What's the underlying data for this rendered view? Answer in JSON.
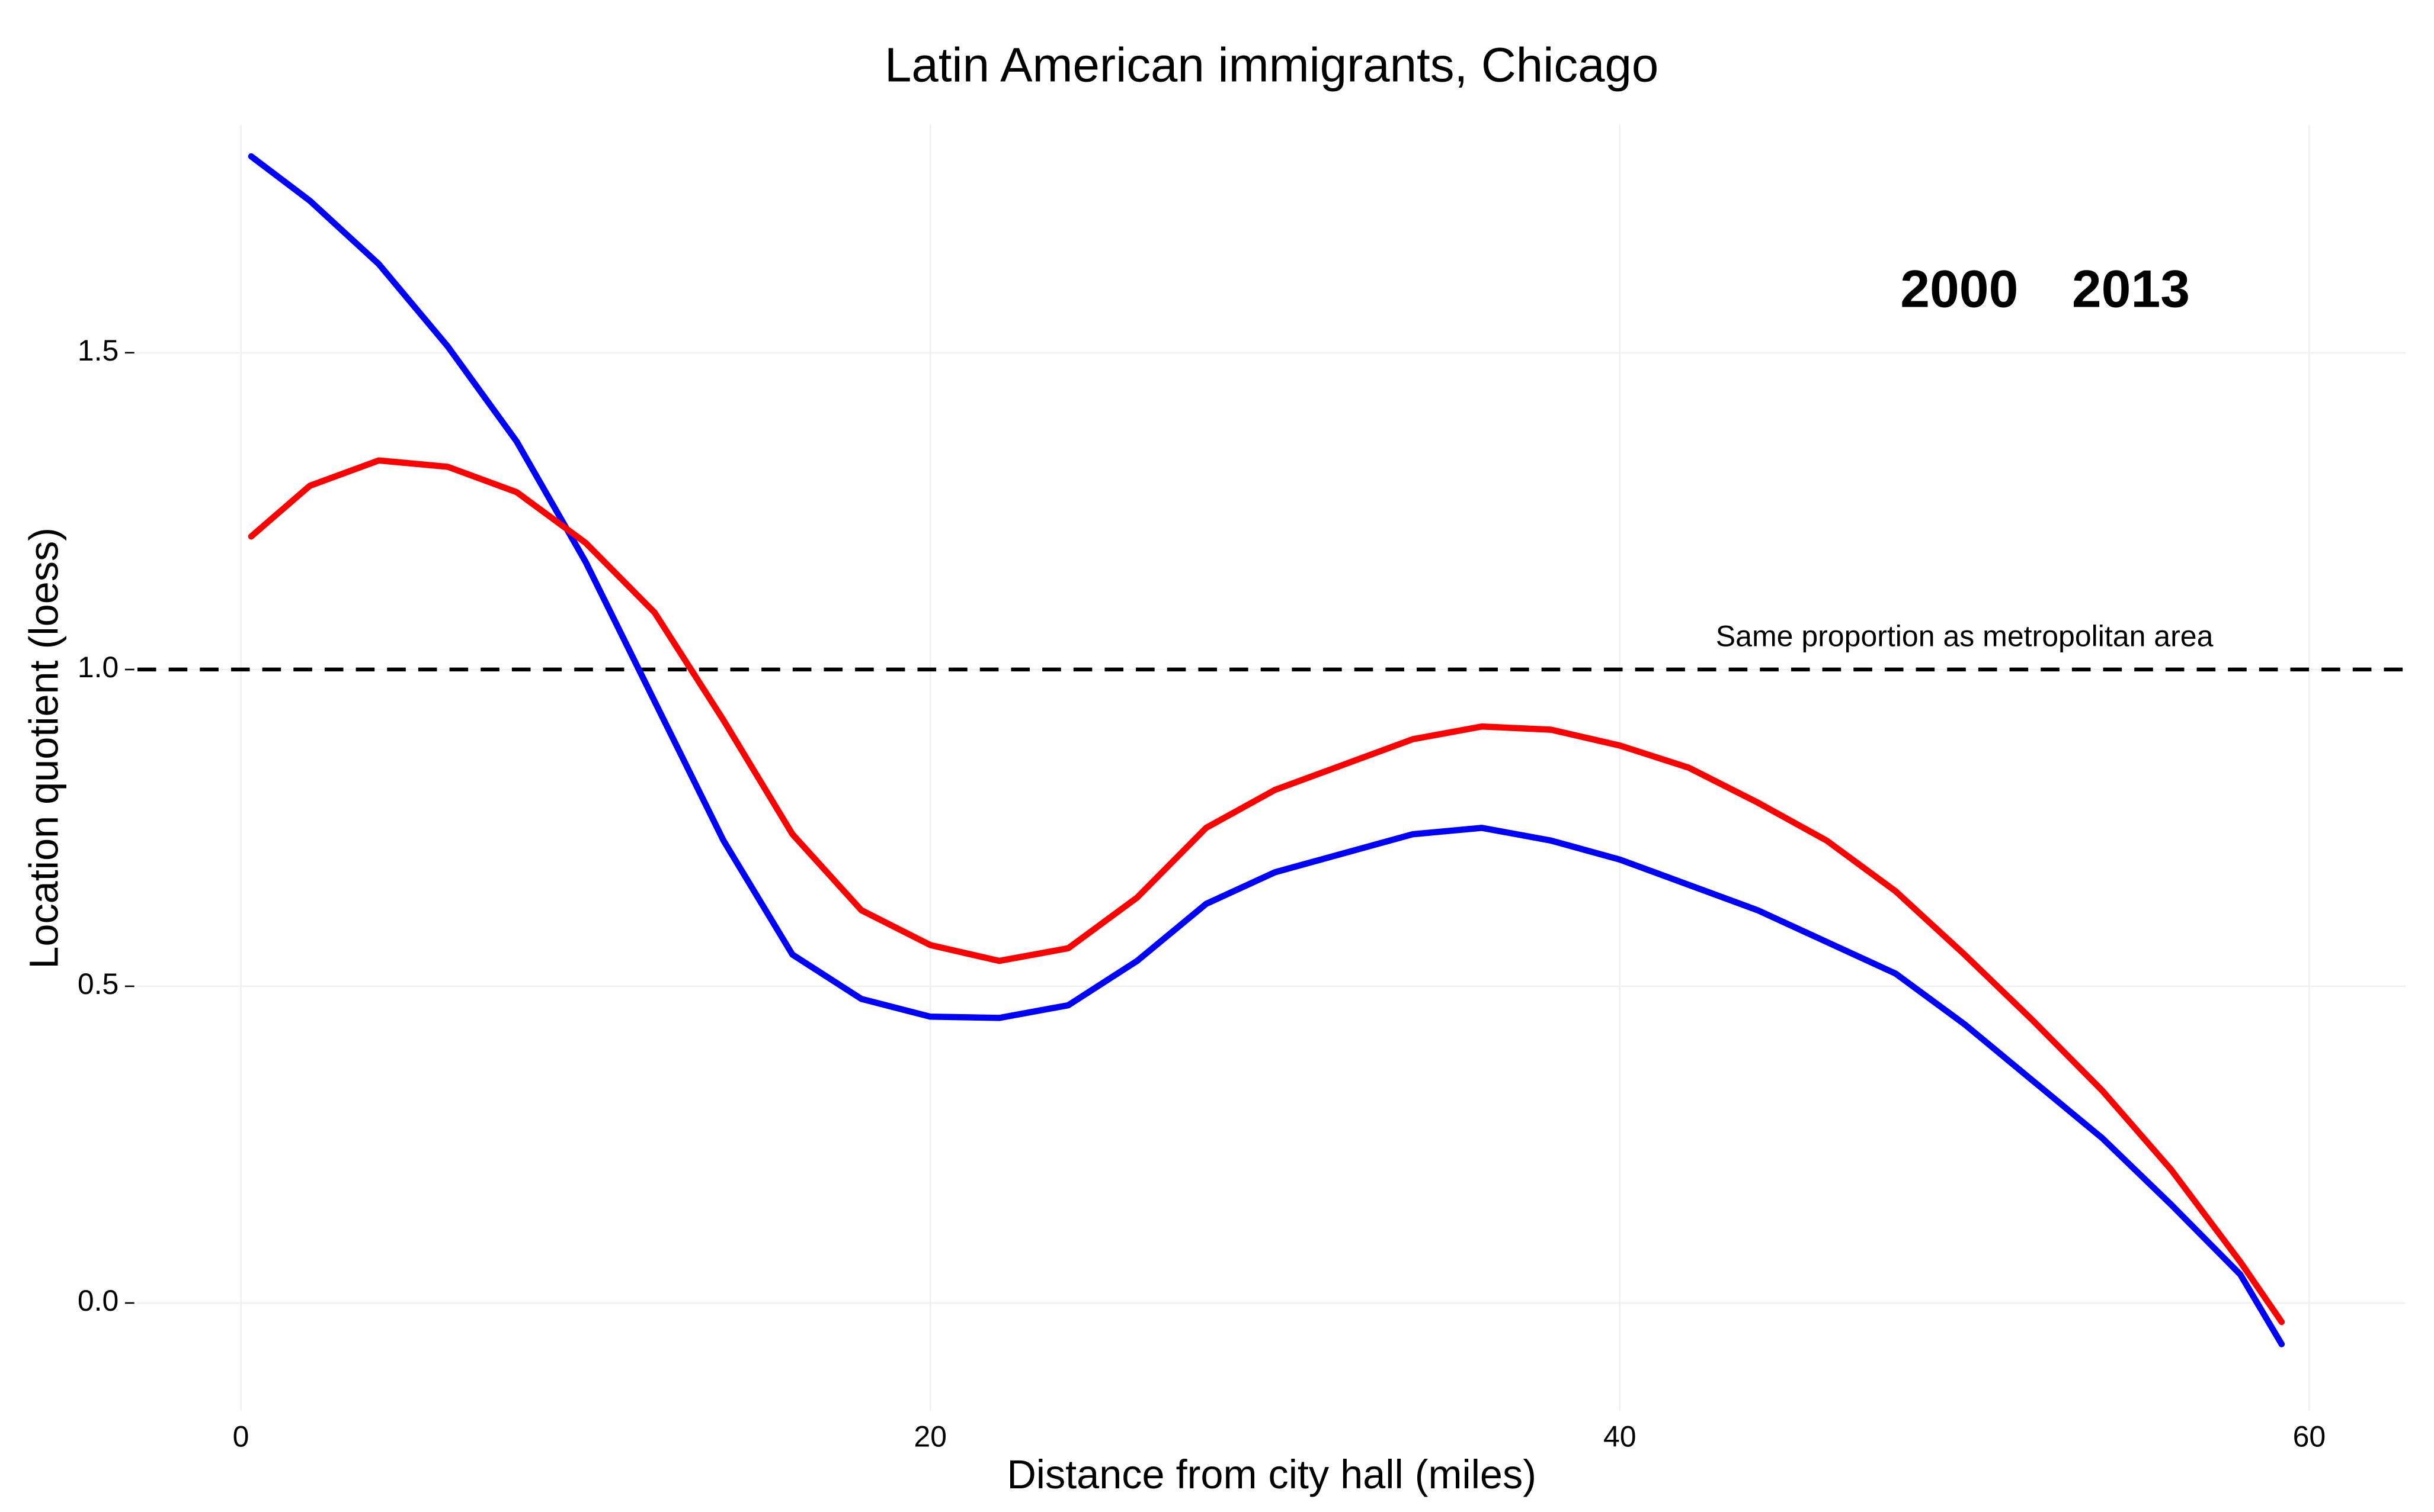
{
  "chart_data": {
    "type": "line",
    "title": "Latin American immigrants, Chicago",
    "x_label": "Distance from city hall (miles)",
    "y_label": "Location quotient (loess)",
    "x": [
      0.3,
      2,
      4,
      6,
      8,
      10,
      12,
      14,
      16,
      18,
      20,
      22,
      24,
      26,
      28,
      30,
      32,
      34,
      36,
      38,
      40,
      42,
      44,
      46,
      48,
      50,
      52,
      54,
      56,
      58,
      59.2
    ],
    "series": [
      {
        "name": "2000",
        "color": "#0000ff",
        "values": [
          1.81,
          1.74,
          1.64,
          1.51,
          1.36,
          1.17,
          0.95,
          0.73,
          0.55,
          0.48,
          0.452,
          0.45,
          0.47,
          0.54,
          0.63,
          0.68,
          0.71,
          0.74,
          0.75,
          0.73,
          0.7,
          0.66,
          0.62,
          0.57,
          0.52,
          0.44,
          0.35,
          0.26,
          0.155,
          0.045,
          -0.065
        ]
      },
      {
        "name": "2013",
        "color": "#ff0000",
        "values": [
          1.21,
          1.29,
          1.33,
          1.32,
          1.28,
          1.2,
          1.09,
          0.92,
          0.74,
          0.62,
          0.565,
          0.54,
          0.56,
          0.64,
          0.75,
          0.81,
          0.85,
          0.89,
          0.91,
          0.905,
          0.88,
          0.845,
          0.79,
          0.73,
          0.65,
          0.55,
          0.445,
          0.335,
          0.21,
          0.065,
          -0.03
        ]
      }
    ],
    "reference_line": {
      "value": 1.0,
      "label": "Same proportion as metropolitan area",
      "label_x": 50
    },
    "xlim": [
      -3,
      62.8
    ],
    "ylim": [
      -0.17,
      1.86
    ],
    "xticks": [
      0,
      20,
      40,
      60
    ],
    "yticks": [
      {
        "value": 0,
        "label": "0.0"
      },
      0.5,
      {
        "value": 1,
        "label": "1.0"
      },
      1.5
    ],
    "grid": true
  }
}
